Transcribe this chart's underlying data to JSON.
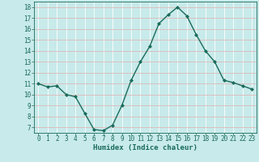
{
  "x": [
    0,
    1,
    2,
    3,
    4,
    5,
    6,
    7,
    8,
    9,
    10,
    11,
    12,
    13,
    14,
    15,
    16,
    17,
    18,
    19,
    20,
    21,
    22,
    23
  ],
  "y": [
    11,
    10.7,
    10.8,
    10.0,
    9.8,
    8.3,
    6.8,
    6.7,
    7.2,
    9.0,
    11.3,
    13.0,
    14.4,
    16.5,
    17.3,
    18.0,
    17.2,
    15.5,
    14.0,
    13.0,
    11.3,
    11.1,
    10.8,
    10.5
  ],
  "xlim": [
    -0.5,
    23.5
  ],
  "ylim": [
    6.5,
    18.5
  ],
  "yticks": [
    7,
    8,
    9,
    10,
    11,
    12,
    13,
    14,
    15,
    16,
    17,
    18
  ],
  "xticks": [
    0,
    1,
    2,
    3,
    4,
    5,
    6,
    7,
    8,
    9,
    10,
    11,
    12,
    13,
    14,
    15,
    16,
    17,
    18,
    19,
    20,
    21,
    22,
    23
  ],
  "xlabel": "Humidex (Indice chaleur)",
  "line_color": "#1a6b5a",
  "marker": "D",
  "markersize": 2.0,
  "bg_color": "#c8eaea",
  "grid_color": "#e8c8c8",
  "tick_color": "#1a6b5a",
  "label_color": "#1a6b5a",
  "linewidth": 1.0,
  "tick_fontsize": 5.5,
  "xlabel_fontsize": 6.5
}
